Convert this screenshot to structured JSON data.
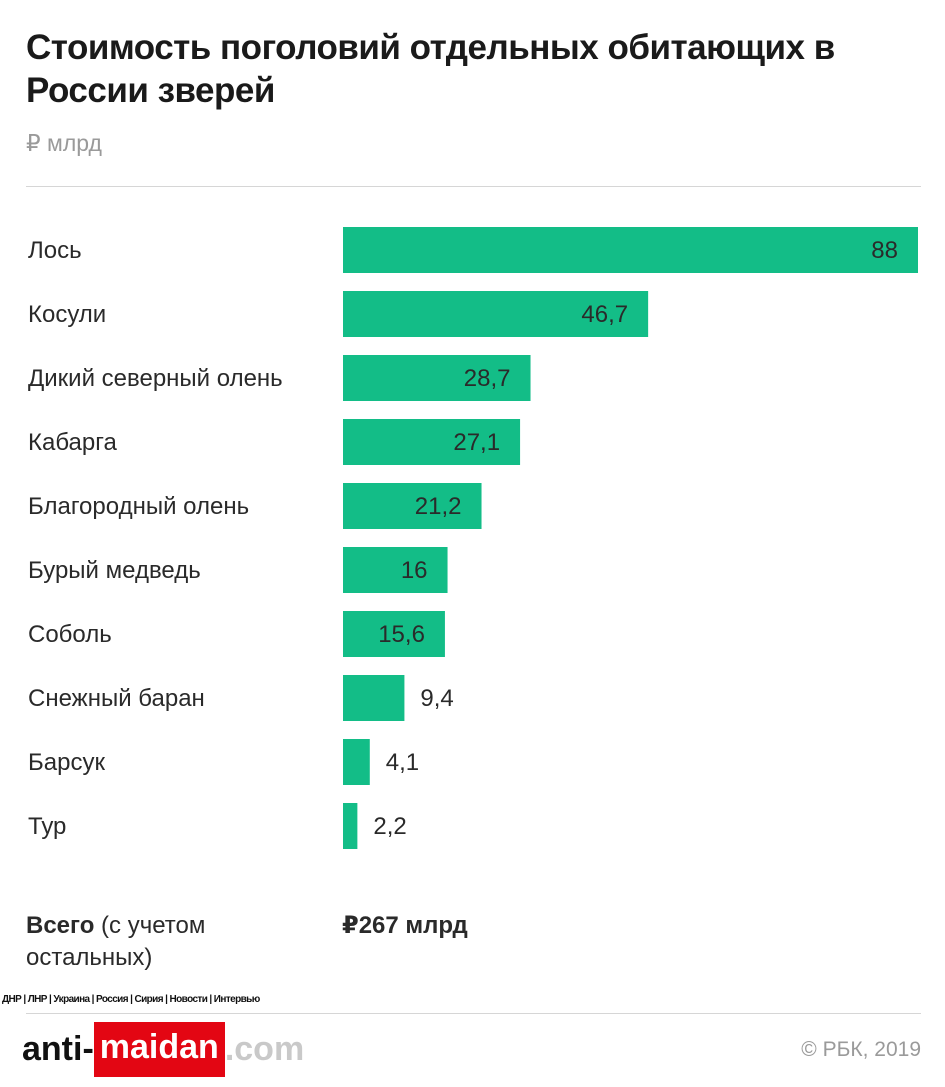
{
  "header": {
    "title": "Стоимость поголовий отдельных обитающих в России зверей",
    "unit": "₽ млрд"
  },
  "chart_data": {
    "type": "bar",
    "orientation": "horizontal",
    "title": "Стоимость поголовий отдельных обитающих в России зверей",
    "ylabel": "₽ млрд",
    "categories": [
      "Лось",
      "Косули",
      "Дикий северный олень",
      "Кабарга",
      "Благородный олень",
      "Бурый медведь",
      "Соболь",
      "Снежный баран",
      "Барсук",
      "Тур"
    ],
    "values": [
      88,
      46.7,
      28.7,
      27.1,
      21.2,
      16,
      15.6,
      9.4,
      4.1,
      2.2
    ],
    "value_labels": [
      "88",
      "46,7",
      "28,7",
      "27,1",
      "21,2",
      "16",
      "15,6",
      "9,4",
      "4,1",
      "2,2"
    ],
    "xlim": [
      0,
      88
    ],
    "bar_color": "#13bd87",
    "grid": false
  },
  "summary": {
    "label_bold": "Всего",
    "label_rest": " (с учетом остальных)",
    "value": "₽267 млрд"
  },
  "footer": {
    "nav": "ДНР | ЛНР | Украина | Россия | Сирия | Новости | Интервью",
    "credit": "© РБК, 2019",
    "watermark": {
      "part1": "anti-",
      "part2": "maidan",
      "part3": ".com"
    }
  }
}
